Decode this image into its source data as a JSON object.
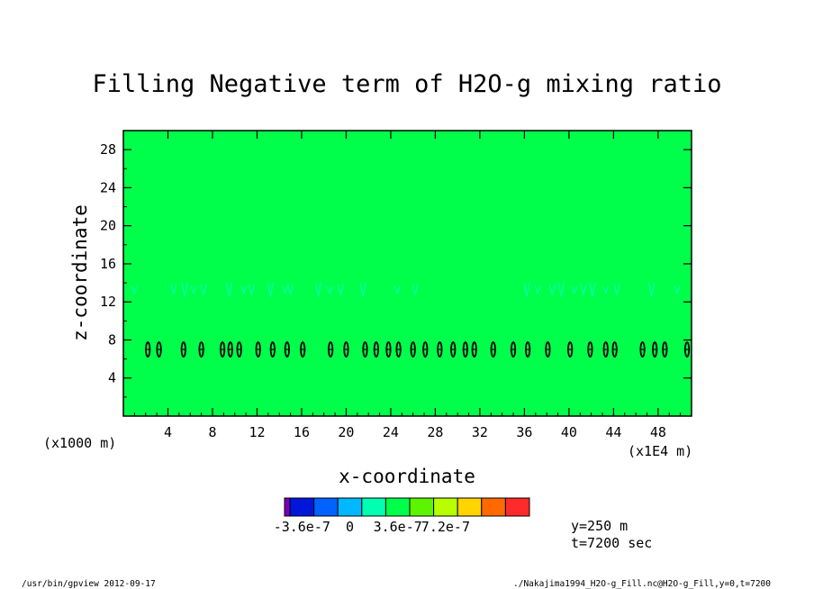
{
  "chart_data": {
    "type": "heatmap",
    "title": "Filling Negative term of H2O-g mixing ratio",
    "xlabel": "x-coordinate",
    "ylabel": "z-coordinate",
    "x_unit_left": "(x1000 m)",
    "x_unit_right": "(x1E4 m)",
    "xlim": [
      0,
      51
    ],
    "ylim": [
      0,
      30
    ],
    "x_ticks": [
      4,
      8,
      12,
      16,
      20,
      24,
      28,
      32,
      36,
      40,
      44,
      48
    ],
    "y_ticks": [
      4,
      8,
      12,
      16,
      20,
      24,
      28
    ],
    "background_value": 0,
    "background_color": "#00ff4a",
    "colorbar": {
      "colors": [
        "#7a00b8",
        "#0017d9",
        "#0062ff",
        "#00b8ff",
        "#00ffb0",
        "#00ff4a",
        "#5cf400",
        "#b7ff00",
        "#ffd400",
        "#ff6a00",
        "#ff2a2a"
      ],
      "labels": [
        "-3.6e-7",
        "0",
        "3.6e-7",
        "7.2e-7"
      ],
      "label_values": [
        -3.6e-07,
        0,
        3.6e-07,
        7.2e-07
      ]
    },
    "negative_band_z": 7,
    "negative_band_x": [
      2.2,
      3.2,
      5.4,
      7.0,
      8.9,
      9.6,
      10.4,
      12.1,
      13.4,
      14.7,
      16.1,
      18.6,
      20.0,
      21.7,
      22.7,
      23.8,
      24.7,
      26.0,
      27.1,
      28.4,
      29.6,
      30.7,
      31.5,
      33.2,
      35.0,
      36.3,
      38.1,
      40.1,
      41.9,
      43.3,
      44.1,
      46.6,
      47.7,
      48.6,
      50.6
    ],
    "trace_band_z": 13.3,
    "trace_band_x": [
      1.0,
      4.5,
      5.5,
      6.3,
      7.2,
      9.5,
      10.8,
      11.5,
      13.2,
      14.5,
      15.0,
      17.5,
      18.5,
      19.5,
      21.5,
      24.6,
      26.2,
      36.2,
      37.2,
      38.5,
      39.3,
      40.5,
      41.3,
      42.1,
      43.3,
      44.3,
      47.4,
      49.7
    ]
  },
  "info": {
    "y_info": "y=250 m",
    "t_info": "t=7200 sec",
    "footer_left": "/usr/bin/gpview  2012-09-17",
    "footer_right": "./Nakajima1994_H2O-g_Fill.nc@H2O-g_Fill,y=0,t=7200"
  }
}
